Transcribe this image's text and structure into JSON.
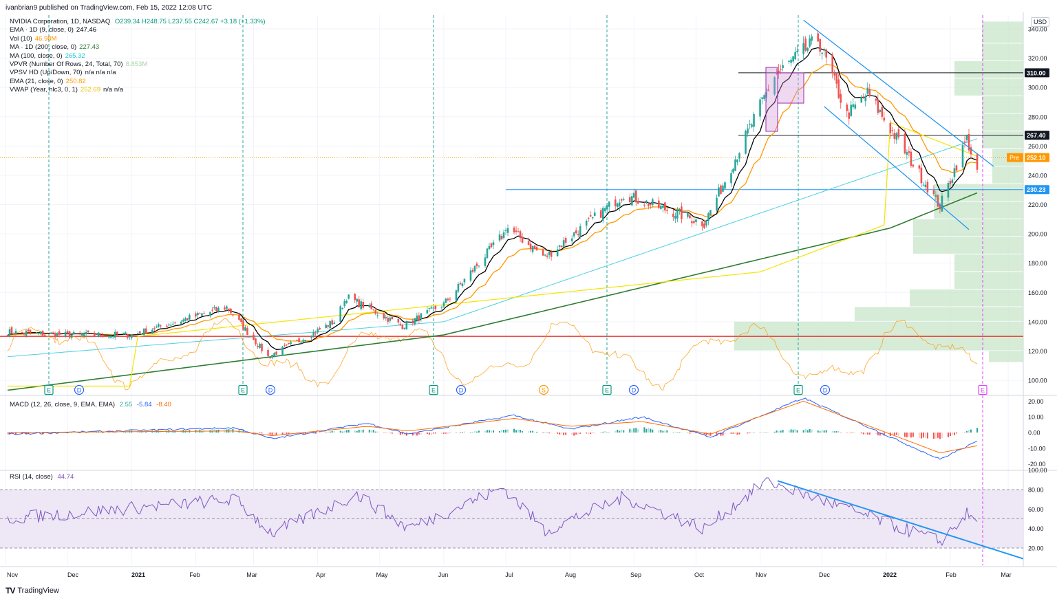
{
  "header": {
    "publisher_line": "ivanbrian9 published on TradingView.com, Feb 15, 2022 12:08 UTC"
  },
  "colors": {
    "up": "#26a69a",
    "down": "#ef5350",
    "ema9": "#000000",
    "ema21": "#ff9800",
    "ma100": "#4dd0e1",
    "ma200": "#2e7d32",
    "vwap": "#f5e400",
    "trendline": "#2196f3",
    "support_red": "#e53935",
    "volume_profile": "#c8e6c9",
    "rsi": "#7e57c2",
    "rsi_band": "#ede7f6",
    "macd": "#2962ff",
    "signal": "#ff6d00"
  },
  "legend": {
    "symbol": "NVIDIA Corporation, 1D, NASDAQ",
    "ohlc": "O239.34 H248.75 L237.55 C242.67 +3.18 (+1.33%)",
    "ema9": {
      "label": "EMA · 1D (9, close, 0)",
      "value": "247.46"
    },
    "vol": {
      "label": "Vol (10)",
      "value": "46.98M"
    },
    "ma200": {
      "label": "MA · 1D (200, close, 0)",
      "value": "227.43"
    },
    "ma100": {
      "label": "MA (100, close, 0)",
      "value": "265.32"
    },
    "vpvr": {
      "label": "VPVR (Number Of Rows, 24, Total, 70)",
      "value": "8.853M"
    },
    "vpsv": {
      "label": "VPSV HD (Up/Down, 70)",
      "value": "n/a  n/a  n/a"
    },
    "ema21": {
      "label": "EMA (21, close, 0)",
      "value": "250.82"
    },
    "vwap": {
      "label": "VWAP (Year, hlc3, 0, 1)",
      "value": "252.69",
      "extra": "n/a  n/a"
    }
  },
  "price_axis": {
    "currency": "USD",
    "ticks": [
      "340.00",
      "320.00",
      "300.00",
      "280.00",
      "260.00",
      "240.00",
      "220.00",
      "200.00",
      "180.00",
      "160.00",
      "140.00",
      "120.00",
      "100.00"
    ]
  },
  "price_labels": {
    "resistance_high": "310.00",
    "resistance_mid": "267.40",
    "pre_tag": "Pre",
    "pre_price": "252.10",
    "support": "230.23"
  },
  "events": [
    "E",
    "D",
    "E",
    "D",
    "E",
    "D",
    "S",
    "E",
    "D",
    "E",
    "D",
    "E"
  ],
  "macd": {
    "label": "MACD (12, 26, close, 9, EMA, EMA)",
    "hist": "2.55",
    "macd": "-5.84",
    "signal": "-8.40",
    "ticks": [
      "20.00",
      "10.00",
      "0.00",
      "-10.00",
      "-20.00"
    ]
  },
  "rsi": {
    "label": "RSI (14, close)",
    "value": "44.74",
    "ticks": [
      "100.00",
      "80.00",
      "60.00",
      "40.00",
      "20.00"
    ]
  },
  "time_axis": [
    "Nov",
    "Dec",
    "2021",
    "Feb",
    "Mar",
    "Apr",
    "May",
    "Jun",
    "Jul",
    "Aug",
    "Sep",
    "Oct",
    "Nov",
    "Dec",
    "2022",
    "Feb",
    "Mar"
  ],
  "footer": {
    "brand": "TradingView"
  },
  "chart_data": {
    "type": "candlestick",
    "title": "NVIDIA Corporation, 1D, NASDAQ",
    "ylim": [
      93,
      346
    ],
    "close_anchors": [
      {
        "date": "2020-11",
        "close": 133
      },
      {
        "date": "2020-12",
        "close": 131
      },
      {
        "date": "2021-01",
        "close": 131
      },
      {
        "date": "2021-02-16",
        "close": 150
      },
      {
        "date": "2021-03-08",
        "close": 116
      },
      {
        "date": "2021-04-09",
        "close": 140
      },
      {
        "date": "2021-04-15",
        "close": 157
      },
      {
        "date": "2021-05-12",
        "close": 137
      },
      {
        "date": "2021-06-01",
        "close": 152
      },
      {
        "date": "2021-06-30",
        "close": 200
      },
      {
        "date": "2021-07-01",
        "close": 205
      },
      {
        "date": "2021-07-20",
        "close": 184
      },
      {
        "date": "2021-08-27",
        "close": 227
      },
      {
        "date": "2021-10-05",
        "close": 207
      },
      {
        "date": "2021-11-08",
        "close": 308
      },
      {
        "date": "2021-11-29",
        "close": 333
      },
      {
        "date": "2021-12-13",
        "close": 281
      },
      {
        "date": "2021-12-23",
        "close": 296
      },
      {
        "date": "2022-01-27",
        "close": 219
      },
      {
        "date": "2022-02-09",
        "close": 265
      },
      {
        "date": "2022-02-14",
        "close": 242
      }
    ],
    "ema9_anchors": [
      {
        "date": "2021-08-27",
        "value": 226
      },
      {
        "date": "2021-11-23",
        "value": 314
      },
      {
        "date": "2022-01-28",
        "value": 230
      },
      {
        "date": "2022-02-14",
        "value": 247
      }
    ],
    "ema21_anchors": [
      {
        "date": "2021-11-30",
        "value": 305
      },
      {
        "date": "2022-02-14",
        "value": 251
      }
    ],
    "ma100_anchors": [
      {
        "date": "2020-11",
        "value": 116
      },
      {
        "date": "2021-06-01",
        "value": 140
      },
      {
        "date": "2022-02-14",
        "value": 265
      }
    ],
    "ma200_anchors": [
      {
        "date": "2020-11",
        "value": 93
      },
      {
        "date": "2021-06-01",
        "value": 131
      },
      {
        "date": "2022-01-03",
        "value": 204
      },
      {
        "date": "2022-02-14",
        "value": 228
      }
    ],
    "vwap_anchors": [
      {
        "date": "2020-12-31",
        "value": 96
      },
      {
        "date": "2021-01-04",
        "value": 130
      },
      {
        "date": "2021-11-01",
        "value": 174
      },
      {
        "date": "2021-12-31",
        "value": 206
      },
      {
        "date": "2022-01-03",
        "value": 276
      },
      {
        "date": "2022-02-14",
        "value": 253
      }
    ],
    "horizontal_levels": [
      310,
      267.4,
      252.1,
      230.23,
      130
    ],
    "trendlines": [
      {
        "from": {
          "date": "2021-11-22",
          "price": 346
        },
        "to": {
          "date": "2022-02-22",
          "price": 246
        }
      },
      {
        "from": {
          "date": "2021-12-02",
          "price": 287
        },
        "to": {
          "date": "2022-02-10",
          "price": 203
        }
      }
    ],
    "macd_anchors": [
      {
        "date": "2021-11-22",
        "macd": 22,
        "signal": 20
      },
      {
        "date": "2022-01-27",
        "macd": -17,
        "signal": -13
      },
      {
        "date": "2022-02-14",
        "macd": -5.84,
        "signal": -8.4,
        "hist": 2.55
      }
    ],
    "rsi_anchors": [
      {
        "date": "2021-11-04",
        "value": 89
      },
      {
        "date": "2022-01-27",
        "value": 27
      },
      {
        "date": "2022-02-09",
        "value": 55
      },
      {
        "date": "2022-02-14",
        "value": 44.74
      }
    ],
    "rsi_levels": [
      80,
      50,
      20
    ]
  }
}
